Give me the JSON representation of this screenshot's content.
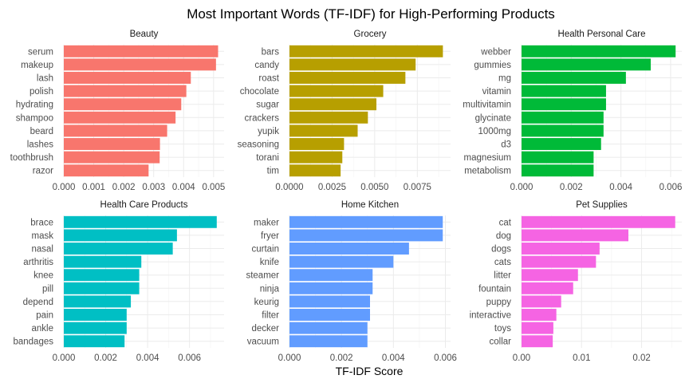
{
  "chart_data": {
    "type": "bar",
    "orientation": "horizontal",
    "title": "Most Important Words (TF-IDF) for High-Performing Products",
    "xlabel": "TF-IDF Score",
    "ylabel": "",
    "grid": true,
    "legend": "none",
    "panels": [
      {
        "name": "Beauty",
        "color": "#F8766D",
        "xlim": [
          0,
          0.00535
        ],
        "ticks": [
          0,
          0.001,
          0.002,
          0.003,
          0.004,
          0.005
        ],
        "tick_labels": [
          "0.000",
          "0.001",
          "0.002",
          "0.003",
          "0.004",
          "0.005"
        ],
        "categories": [
          "serum",
          "makeup",
          "lash",
          "polish",
          "hydrating",
          "shampoo",
          "beard",
          "lashes",
          "toothbrush",
          "razor"
        ],
        "values": [
          0.00515,
          0.00508,
          0.00424,
          0.00409,
          0.00392,
          0.00373,
          0.00345,
          0.00321,
          0.0032,
          0.00283
        ]
      },
      {
        "name": "Grocery",
        "color": "#B79F00",
        "xlim": [
          0,
          0.00945
        ],
        "ticks": [
          0,
          0.0025,
          0.005,
          0.0075
        ],
        "tick_labels": [
          "0.0000",
          "0.0025",
          "0.0050",
          "0.0075"
        ],
        "categories": [
          "bars",
          "candy",
          "roast",
          "chocolate",
          "sugar",
          "crackers",
          "yupik",
          "seasoning",
          "torani",
          "tim"
        ],
        "values": [
          0.009,
          0.0074,
          0.0068,
          0.0055,
          0.0051,
          0.0046,
          0.004,
          0.0032,
          0.0031,
          0.003
        ]
      },
      {
        "name": "Health  Personal Care",
        "color": "#00BA38",
        "xlim": [
          0,
          0.00645
        ],
        "ticks": [
          0,
          0.002,
          0.004,
          0.006
        ],
        "tick_labels": [
          "0.000",
          "0.002",
          "0.004",
          "0.006"
        ],
        "categories": [
          "webber",
          "gummies",
          "mg",
          "vitamin",
          "multivitamin",
          "glycinate",
          "1000mg",
          "d3",
          "magnesium",
          "metabolism"
        ],
        "values": [
          0.0062,
          0.0052,
          0.0042,
          0.0034,
          0.0034,
          0.0033,
          0.0033,
          0.0032,
          0.0029,
          0.0029
        ]
      },
      {
        "name": "Health Care Products",
        "color": "#00BFC4",
        "xlim": [
          0,
          0.00765
        ],
        "ticks": [
          0,
          0.002,
          0.004,
          0.006
        ],
        "tick_labels": [
          "0.000",
          "0.002",
          "0.004",
          "0.006"
        ],
        "categories": [
          "brace",
          "mask",
          "nasal",
          "arthritis",
          "knee",
          "pill",
          "depend",
          "pain",
          "ankle",
          "bandages"
        ],
        "values": [
          0.0073,
          0.0054,
          0.0052,
          0.0037,
          0.0036,
          0.0036,
          0.0032,
          0.003,
          0.003,
          0.0029
        ]
      },
      {
        "name": "Home  Kitchen",
        "color": "#619CFF",
        "xlim": [
          0,
          0.0062
        ],
        "ticks": [
          0,
          0.002,
          0.004,
          0.006
        ],
        "tick_labels": [
          "0.000",
          "0.002",
          "0.004",
          "0.006"
        ],
        "categories": [
          "maker",
          "fryer",
          "curtain",
          "knife",
          "steamer",
          "ninja",
          "keurig",
          "filter",
          "decker",
          "vacuum"
        ],
        "values": [
          0.0059,
          0.0059,
          0.0046,
          0.004,
          0.0032,
          0.0032,
          0.0031,
          0.0031,
          0.003,
          0.003
        ]
      },
      {
        "name": "Pet Supplies",
        "color": "#F564E3",
        "xlim": [
          0,
          0.0267
        ],
        "ticks": [
          0,
          0.01,
          0.02
        ],
        "tick_labels": [
          "0.00",
          "0.01",
          "0.02"
        ],
        "categories": [
          "cat",
          "dog",
          "dogs",
          "cats",
          "litter",
          "fountain",
          "puppy",
          "interactive",
          "toys",
          "collar"
        ],
        "values": [
          0.0256,
          0.0178,
          0.013,
          0.0124,
          0.0094,
          0.0086,
          0.0066,
          0.0058,
          0.0053,
          0.0052
        ]
      }
    ]
  }
}
